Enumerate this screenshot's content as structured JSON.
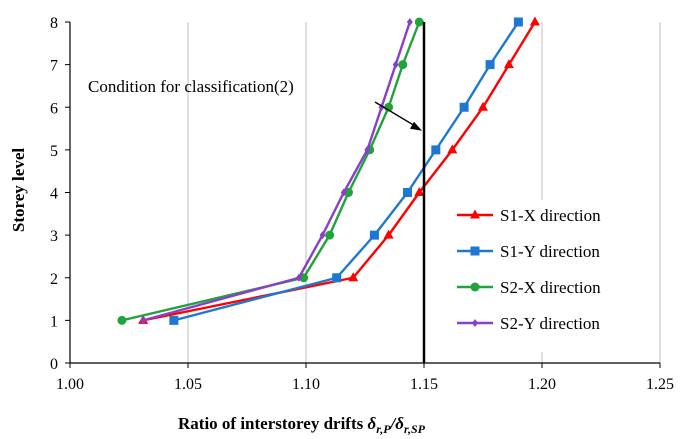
{
  "chart_data": {
    "type": "line",
    "xlabel": "Ratio of interstorey  drifts δr,P/δr,SP",
    "xlabel_main": "Ratio of interstorey  drifts ",
    "xlabel_math": "δ",
    "xlabel_sub1": "r,P",
    "xlabel_sep": "/δ",
    "xlabel_sub2": "r,SP",
    "ylabel": "Storey level",
    "xlim": [
      1.0,
      1.25
    ],
    "ylim": [
      0,
      8
    ],
    "xticks": [
      "1.00",
      "1.05",
      "1.10",
      "1.15",
      "1.20",
      "1.25"
    ],
    "yticks": [
      "0",
      "1",
      "2",
      "3",
      "4",
      "5",
      "6",
      "7",
      "8"
    ],
    "grid": "vertical",
    "legend_position": "right",
    "series": [
      {
        "name": "S1-X direction",
        "color": "#ff0000",
        "marker": "triangle",
        "x": [
          1.031,
          1.12,
          1.135,
          1.148,
          1.162,
          1.175,
          1.186,
          1.197
        ],
        "y": [
          1,
          2,
          3,
          4,
          5,
          6,
          7,
          8
        ]
      },
      {
        "name": "S1-Y direction",
        "color": "#1e78d2",
        "marker": "square",
        "x": [
          1.044,
          1.113,
          1.129,
          1.143,
          1.155,
          1.167,
          1.178,
          1.19
        ],
        "y": [
          1,
          2,
          3,
          4,
          5,
          6,
          7,
          8
        ]
      },
      {
        "name": "S2-X direction",
        "color": "#1fa33a",
        "marker": "circle",
        "x": [
          1.022,
          1.099,
          1.11,
          1.118,
          1.127,
          1.135,
          1.141,
          1.148
        ],
        "y": [
          1,
          2,
          3,
          4,
          5,
          6,
          7,
          8
        ]
      },
      {
        "name": "S2-Y direction",
        "color": "#8a3fc8",
        "marker": "diamond",
        "x": [
          1.031,
          1.097,
          1.107,
          1.116,
          1.126,
          1.132,
          1.138,
          1.144
        ],
        "y": [
          1,
          2,
          3,
          4,
          5,
          6,
          7,
          8
        ]
      }
    ],
    "reference_line": {
      "x": 1.15
    },
    "annotation": {
      "text": "Condition for classification(2)",
      "arrow_to": [
        1.15,
        5.45
      ]
    }
  }
}
